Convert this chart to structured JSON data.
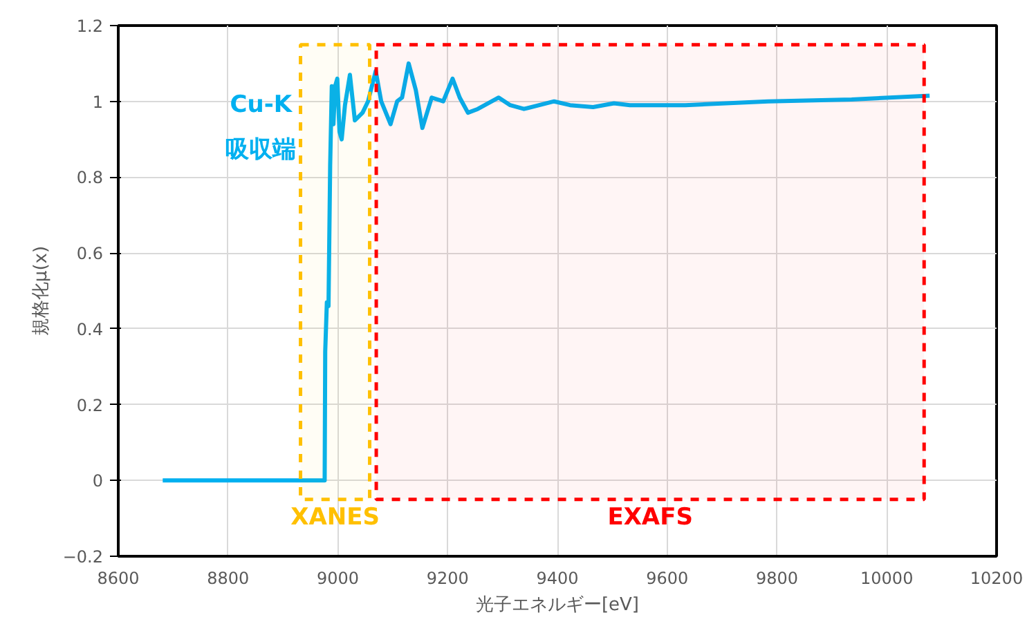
{
  "chart_data": {
    "type": "line",
    "xlabel": "光子エネルギー[eV]",
    "ylabel": "規格化μ(x)",
    "xlim": [
      8600,
      10200
    ],
    "xticks": [
      8600,
      8800,
      9000,
      9200,
      9400,
      9600,
      9800,
      10000,
      10200
    ],
    "ylim": [
      -0.2,
      1.2
    ],
    "yticks": [
      -0.2,
      0,
      0.2,
      0.4,
      0.6,
      0.8,
      1,
      1.2
    ],
    "grid": true,
    "marker": "none",
    "line_style": "solid",
    "x": [
      8681,
      8976,
      8977,
      8980,
      8983,
      8986,
      8989,
      8992,
      8995,
      8999,
      9003,
      9007,
      9013,
      9022,
      9031,
      9045,
      9055,
      9069,
      9079,
      9096,
      9108,
      9117,
      9129,
      9142,
      9154,
      9171,
      9192,
      9209,
      9222,
      9237,
      9255,
      9293,
      9314,
      9339,
      9394,
      9423,
      9465,
      9503,
      9532,
      9633,
      9784,
      9936,
      10078
    ],
    "series": [
      {
        "color": "#00b0f0",
        "values": [
          0,
          0,
          0.34,
          0.47,
          0.46,
          0.83,
          1.04,
          0.94,
          1.04,
          1.06,
          0.92,
          0.9,
          0.99,
          1.07,
          0.95,
          0.97,
          1.0,
          1.08,
          1.0,
          0.94,
          1.0,
          1.01,
          1.1,
          1.03,
          0.93,
          1.01,
          1.0,
          1.06,
          1.01,
          0.97,
          0.98,
          1.01,
          0.99,
          0.98,
          1.0,
          0.99,
          0.985,
          0.995,
          0.99,
          0.99,
          1.0,
          1.005,
          1.015
        ]
      }
    ],
    "bands": [
      {
        "axis": "x",
        "from": 8932,
        "to": 9058,
        "label": "XANES",
        "color": "#ffc000"
      },
      {
        "axis": "x",
        "from": 9070,
        "to": 10068,
        "label": "EXAFS",
        "color": "#ff0000"
      }
    ],
    "annotations": [
      "Cu-K",
      "吸収端"
    ]
  }
}
